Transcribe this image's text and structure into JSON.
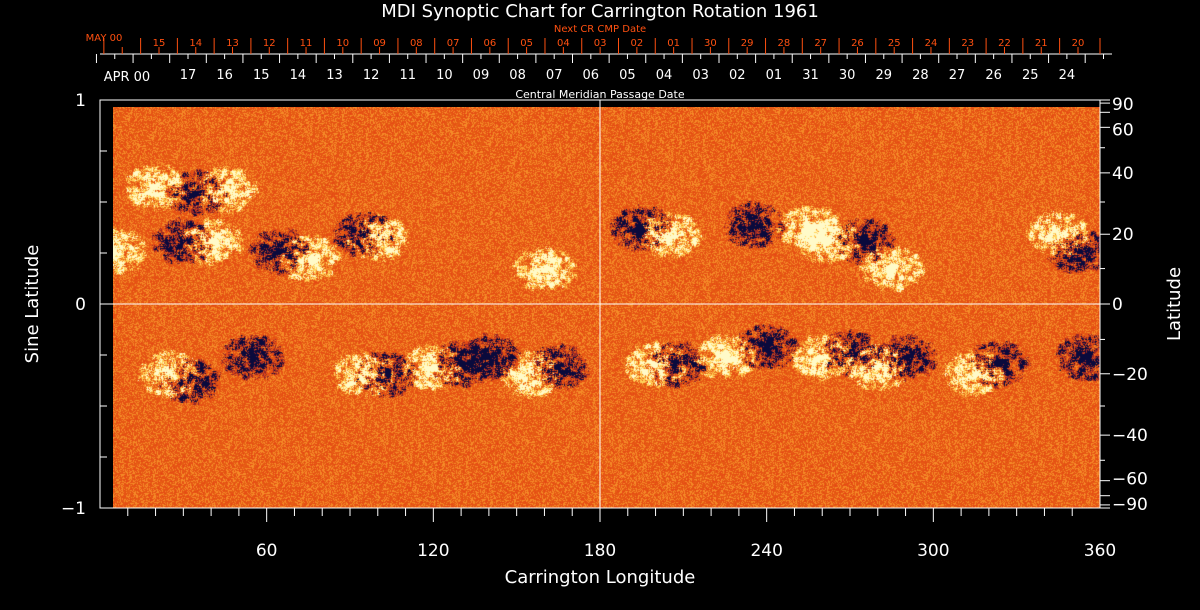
{
  "chart_data": {
    "type": "heatmap",
    "title": "MDI Synoptic Chart for Carrington Rotation 1961",
    "xlabel": "Carrington Longitude",
    "ylabel": "Sine Latitude",
    "y2label": "Latitude",
    "top_label": "Central Meridian Passage Date",
    "top2_label": "Next CR CMP Date",
    "xlim": [
      0,
      360
    ],
    "ylim": [
      -1,
      1
    ],
    "x_ticks": [
      60,
      120,
      180,
      240,
      300,
      360
    ],
    "y_ticks": [
      {
        "v": 1,
        "label": "1"
      },
      {
        "v": 0,
        "label": "0"
      },
      {
        "v": -1,
        "label": "−1"
      }
    ],
    "lat_ticks": [
      {
        "v": 90,
        "label": "90"
      },
      {
        "v": 60,
        "label": "60"
      },
      {
        "v": 40,
        "label": "40"
      },
      {
        "v": 20,
        "label": "20"
      },
      {
        "v": 0,
        "label": "0"
      },
      {
        "v": -20,
        "label": "−20"
      },
      {
        "v": -40,
        "label": "−40"
      },
      {
        "v": -60,
        "label": "−60"
      },
      {
        "v": -90,
        "label": "−90"
      }
    ],
    "cmp_month_label": "APR 00",
    "cmp_dates": [
      "17",
      "16",
      "15",
      "14",
      "13",
      "12",
      "11",
      "10",
      "09",
      "08",
      "07",
      "06",
      "05",
      "04",
      "03",
      "02",
      "01",
      "31",
      "30",
      "29",
      "28",
      "27",
      "26",
      "25",
      "24"
    ],
    "next_month_label": "MAY 00",
    "next_dates": [
      "15",
      "14",
      "13",
      "12",
      "11",
      "10",
      "09",
      "08",
      "07",
      "06",
      "05",
      "04",
      "03",
      "02",
      "01",
      "30",
      "29",
      "28",
      "27",
      "26",
      "25",
      "24",
      "23",
      "22",
      "21",
      "20"
    ],
    "colormap": {
      "background": "#e8501a",
      "positive": "#fff8c0",
      "negative": "#0a0a40"
    },
    "active_regions": [
      {
        "lon": 20,
        "lat": 35,
        "pol": 1
      },
      {
        "lon": 35,
        "lat": 33,
        "pol": -1
      },
      {
        "lon": 45,
        "lat": 34,
        "pol": 1
      },
      {
        "lon": 30,
        "lat": 18,
        "pol": -1
      },
      {
        "lon": 40,
        "lat": 18,
        "pol": 1
      },
      {
        "lon": 65,
        "lat": 15,
        "pol": -1
      },
      {
        "lon": 75,
        "lat": 13,
        "pol": 1
      },
      {
        "lon": 95,
        "lat": 20,
        "pol": -1
      },
      {
        "lon": 100,
        "lat": 19,
        "pol": 1
      },
      {
        "lon": 160,
        "lat": 10,
        "pol": 1
      },
      {
        "lon": 5,
        "lat": 15,
        "pol": 1
      },
      {
        "lon": 195,
        "lat": 22,
        "pol": -1
      },
      {
        "lon": 205,
        "lat": 20,
        "pol": 1
      },
      {
        "lon": 235,
        "lat": 23,
        "pol": -1
      },
      {
        "lon": 255,
        "lat": 22,
        "pol": 1
      },
      {
        "lon": 262,
        "lat": 18,
        "pol": 1
      },
      {
        "lon": 275,
        "lat": 18,
        "pol": -1
      },
      {
        "lon": 285,
        "lat": 10,
        "pol": 1
      },
      {
        "lon": 345,
        "lat": 20,
        "pol": 1
      },
      {
        "lon": 352,
        "lat": 15,
        "pol": -1
      },
      {
        "lon": 25,
        "lat": -20,
        "pol": 1
      },
      {
        "lon": 32,
        "lat": -22,
        "pol": -1
      },
      {
        "lon": 55,
        "lat": -15,
        "pol": -1
      },
      {
        "lon": 95,
        "lat": -20,
        "pol": 1
      },
      {
        "lon": 103,
        "lat": -20,
        "pol": -1
      },
      {
        "lon": 120,
        "lat": -18,
        "pol": 1
      },
      {
        "lon": 130,
        "lat": -17,
        "pol": -1
      },
      {
        "lon": 140,
        "lat": -15,
        "pol": -1
      },
      {
        "lon": 155,
        "lat": -20,
        "pol": 1
      },
      {
        "lon": 165,
        "lat": -18,
        "pol": -1
      },
      {
        "lon": 200,
        "lat": -17,
        "pol": 1
      },
      {
        "lon": 207,
        "lat": -17,
        "pol": -1
      },
      {
        "lon": 225,
        "lat": -15,
        "pol": 1
      },
      {
        "lon": 240,
        "lat": -12,
        "pol": -1
      },
      {
        "lon": 260,
        "lat": -15,
        "pol": 1
      },
      {
        "lon": 270,
        "lat": -14,
        "pol": -1
      },
      {
        "lon": 280,
        "lat": -18,
        "pol": 1
      },
      {
        "lon": 290,
        "lat": -15,
        "pol": -1
      },
      {
        "lon": 315,
        "lat": -20,
        "pol": 1
      },
      {
        "lon": 323,
        "lat": -17,
        "pol": -1
      },
      {
        "lon": 355,
        "lat": -15,
        "pol": -1
      }
    ]
  }
}
